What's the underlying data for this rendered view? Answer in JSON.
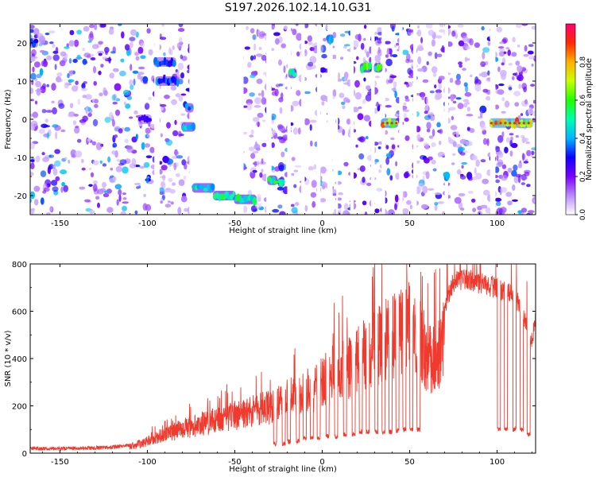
{
  "figure": {
    "title": "S197.2026.102.14.10.G31"
  },
  "chart_data": [
    {
      "type": "heatmap",
      "title": "S197.2026.102.14.10.G31",
      "xlabel": "Height of straight line (km)",
      "ylabel": "Frequency (Hz)",
      "xlim": [
        -167,
        122
      ],
      "ylim": [
        -25,
        25
      ],
      "x_ticks": [
        -150,
        -100,
        -50,
        0,
        50,
        100
      ],
      "y_ticks": [
        -20,
        -10,
        0,
        10,
        20
      ],
      "colorbar": {
        "label": "Normalized spectral amplitude",
        "range": [
          0,
          1
        ],
        "ticks": [
          0.0,
          0.2,
          0.4,
          0.6,
          0.8
        ],
        "colors": [
          "#ffffff",
          "#b98cff",
          "#7a00ff",
          "#1000ff",
          "#00b4ff",
          "#00ffb0",
          "#20ff00",
          "#c8ff00",
          "#ffb000",
          "#ff2a00",
          "#ff0070"
        ]
      },
      "blank_bands_km": [
        [
          -96,
          -93
        ],
        [
          -76,
          -45
        ],
        [
          -32,
          -29
        ],
        [
          -20,
          -18
        ],
        [
          -12,
          -10
        ],
        [
          -3,
          -1
        ],
        [
          3,
          6
        ],
        [
          8,
          9
        ],
        [
          16,
          18
        ],
        [
          28,
          30
        ],
        [
          34,
          36
        ],
        [
          44,
          46
        ],
        [
          52,
          54
        ],
        [
          70,
          72
        ],
        [
          96,
          99
        ]
      ],
      "features": [
        {
          "x": [
            -172,
            -163
          ],
          "y": 20,
          "amp": 0.35
        },
        {
          "x": [
            -96,
            -84
          ],
          "y": 15,
          "amp": 0.35
        },
        {
          "x": [
            -95,
            -82
          ],
          "y": 10,
          "amp": 0.38
        },
        {
          "x": [
            -105,
            -98
          ],
          "y": 0,
          "amp": 0.3
        },
        {
          "x": [
            -78,
            -74
          ],
          "y": 3,
          "amp": 0.4
        },
        {
          "x": [
            -80,
            -73
          ],
          "y": -2,
          "amp": 0.45
        },
        {
          "x": [
            -74,
            -62
          ],
          "y": -18,
          "amp": 0.5
        },
        {
          "x": [
            -62,
            -50
          ],
          "y": -20,
          "amp": 0.55
        },
        {
          "x": [
            -50,
            -38
          ],
          "y": -21,
          "amp": 0.55
        },
        {
          "x": [
            -31,
            -26
          ],
          "y": -16,
          "amp": 0.55
        },
        {
          "x": [
            -25,
            -22
          ],
          "y": -16.5,
          "amp": 0.6
        },
        {
          "x": [
            -19,
            -15
          ],
          "y": 12,
          "amp": 0.55
        },
        {
          "x": [
            3,
            6
          ],
          "y": 21,
          "amp": 0.45
        },
        {
          "x": [
            22,
            28
          ],
          "y": 13.5,
          "amp": 0.65
        },
        {
          "x": [
            30,
            34
          ],
          "y": 13.5,
          "amp": 0.6
        },
        {
          "x": [
            34,
            43
          ],
          "y": -1,
          "amp": 0.8
        },
        {
          "x": [
            70,
            72
          ],
          "y": -15,
          "amp": 0.45
        },
        {
          "x": [
            96,
            120
          ],
          "y": -1,
          "amp": 0.85
        }
      ]
    },
    {
      "type": "line",
      "xlabel": "Height of straight line (km)",
      "ylabel": "SNR (10 * v/v)",
      "xlim": [
        -167,
        122
      ],
      "ylim": [
        0,
        800
      ],
      "x_ticks": [
        -150,
        -100,
        -50,
        0,
        50,
        100
      ],
      "y_ticks": [
        0,
        200,
        400,
        600,
        800
      ],
      "color": "#f03a2e",
      "series": [
        {
          "envelope_x": [
            -167,
            -140,
            -120,
            -110,
            -100,
            -90,
            -80,
            -70,
            -60,
            -50,
            -40,
            -30,
            -20,
            -10,
            0,
            10,
            20,
            30,
            40,
            45,
            50,
            55,
            60,
            65,
            70,
            75,
            80,
            90,
            100,
            110,
            120,
            122
          ],
          "envelope_y": [
            20,
            20,
            25,
            35,
            70,
            110,
            140,
            170,
            195,
            220,
            240,
            270,
            310,
            350,
            420,
            480,
            540,
            620,
            690,
            720,
            760,
            700,
            540,
            560,
            660,
            770,
            780,
            770,
            740,
            720,
            500,
            620
          ],
          "dips_km": [
            -27,
            -22,
            -19,
            -14,
            -10,
            -6,
            -2,
            3,
            8,
            13,
            18,
            22,
            26,
            31,
            35,
            39,
            43,
            47,
            51,
            55,
            101,
            105,
            110,
            114,
            118
          ],
          "dip_floor": [
            30,
            30,
            40,
            40,
            55,
            55,
            55,
            60,
            60,
            70,
            70,
            80,
            80,
            80,
            80,
            80,
            85,
            90,
            90,
            90,
            90,
            90,
            90,
            90,
            70
          ]
        }
      ]
    }
  ]
}
